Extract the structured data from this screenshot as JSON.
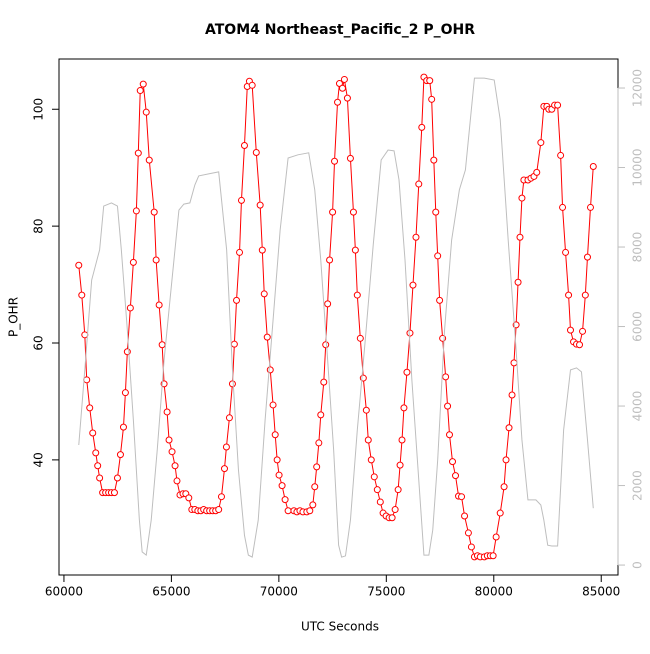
{
  "chart_data": {
    "type": "line",
    "title": "ATOM4 Northeast_Pacific_2 P_OHR",
    "xlabel": "UTC Seconds",
    "ylabel": "P_OHR",
    "xlim": [
      59770,
      85780
    ],
    "ylim": [
      20.3,
      108.6
    ],
    "y2lim": [
      -250,
      12730
    ],
    "xticks": [
      60000,
      65000,
      70000,
      75000,
      80000,
      85000
    ],
    "yticks": [
      40,
      60,
      80,
      100
    ],
    "y2ticks": [
      0,
      2000,
      4000,
      6000,
      8000,
      10000,
      12000
    ],
    "series": [
      {
        "color": "#ff0000",
        "marker": "circle",
        "x": [
          60690,
          60830,
          60970,
          61060,
          61200,
          61340,
          61480,
          61570,
          61660,
          61800,
          61940,
          62080,
          62210,
          62350,
          62490,
          62630,
          62770,
          62860,
          62950,
          63090,
          63230,
          63370,
          63460,
          63550,
          63690,
          63830,
          63970,
          64200,
          64290,
          64430,
          64570,
          64660,
          64800,
          64890,
          65030,
          65170,
          65260,
          65400,
          65540,
          65670,
          65810,
          65950,
          66090,
          66230,
          66370,
          66500,
          66640,
          66780,
          66920,
          67060,
          67200,
          67330,
          67470,
          67560,
          67700,
          67840,
          67930,
          68030,
          68170,
          68260,
          68400,
          68530,
          68630,
          68760,
          68950,
          69130,
          69230,
          69320,
          69460,
          69600,
          69730,
          69830,
          69920,
          70010,
          70150,
          70290,
          70430,
          70700,
          70840,
          70980,
          71120,
          71300,
          71440,
          71580,
          71670,
          71760,
          71860,
          71950,
          72090,
          72180,
          72270,
          72360,
          72500,
          72590,
          72730,
          72820,
          72960,
          73050,
          73190,
          73330,
          73470,
          73560,
          73650,
          73790,
          73930,
          74070,
          74160,
          74300,
          74440,
          74580,
          74720,
          74850,
          74990,
          75130,
          75270,
          75410,
          75550,
          75640,
          75730,
          75820,
          75960,
          76100,
          76240,
          76380,
          76510,
          76650,
          76750,
          76880,
          77020,
          77110,
          77210,
          77300,
          77390,
          77480,
          77620,
          77760,
          77850,
          77940,
          78080,
          78220,
          78360,
          78500,
          78640,
          78820,
          78960,
          79100,
          79240,
          79370,
          79560,
          79700,
          79840,
          79970,
          80110,
          80300,
          80480,
          80570,
          80710,
          80850,
          80940,
          81040,
          81130,
          81220,
          81310,
          81400,
          81590,
          81730,
          81870,
          82000,
          82190,
          82330,
          82470,
          82560,
          82700,
          82830,
          82970,
          83110,
          83200,
          83340,
          83480,
          83570,
          83710,
          83850,
          83990,
          84130,
          84260,
          84360,
          84500,
          84630
        ],
        "values": [
          73.3,
          68.2,
          61.4,
          53.7,
          48.9,
          44.6,
          41.2,
          39.0,
          36.9,
          34.4,
          34.4,
          34.4,
          34.4,
          34.4,
          36.9,
          40.9,
          45.6,
          51.5,
          58.5,
          66.0,
          73.8,
          82.6,
          92.5,
          103.2,
          104.3,
          99.5,
          91.3,
          82.4,
          74.2,
          66.5,
          59.7,
          53.0,
          48.2,
          43.4,
          41.4,
          39.0,
          36.4,
          34.0,
          34.2,
          34.2,
          33.5,
          31.5,
          31.5,
          31.3,
          31.3,
          31.5,
          31.3,
          31.3,
          31.3,
          31.3,
          31.5,
          33.7,
          38.5,
          42.2,
          47.2,
          53.0,
          59.8,
          67.3,
          75.5,
          84.4,
          93.8,
          103.9,
          104.8,
          104.1,
          92.6,
          83.6,
          75.9,
          68.4,
          61.0,
          55.4,
          49.4,
          44.3,
          40.0,
          37.4,
          35.6,
          33.2,
          31.3,
          31.3,
          31.1,
          31.3,
          31.1,
          31.1,
          31.3,
          32.3,
          35.4,
          38.8,
          42.9,
          47.7,
          53.3,
          59.7,
          66.7,
          74.2,
          82.4,
          91.1,
          101.2,
          104.4,
          103.6,
          105.1,
          101.9,
          91.6,
          82.4,
          75.9,
          68.2,
          60.8,
          54.0,
          48.5,
          43.4,
          40.0,
          37.1,
          34.9,
          32.8,
          30.9,
          30.4,
          30.1,
          30.1,
          31.5,
          34.9,
          39.1,
          43.4,
          48.9,
          55.0,
          61.7,
          69.9,
          78.1,
          87.2,
          96.9,
          105.5,
          104.9,
          104.9,
          101.7,
          91.3,
          82.4,
          74.9,
          67.3,
          60.8,
          54.2,
          49.2,
          44.3,
          39.7,
          37.3,
          33.8,
          33.7,
          30.4,
          27.5,
          25.1,
          23.4,
          23.6,
          23.4,
          23.4,
          23.6,
          23.6,
          23.6,
          26.8,
          30.9,
          35.4,
          40.0,
          45.5,
          51.1,
          56.6,
          63.1,
          70.4,
          78.1,
          84.8,
          87.9,
          87.9,
          88.2,
          88.5,
          89.2,
          94.3,
          100.5,
          100.5,
          100.0,
          100.0,
          100.7,
          100.7,
          92.1,
          83.2,
          75.5,
          68.2,
          62.2,
          60.2,
          59.8,
          59.7,
          62.0,
          68.2,
          74.7,
          83.2,
          90.2
        ]
      },
      {
        "color": "#bebebe",
        "axis": "y2",
        "x": [
          60690,
          60970,
          61290,
          61660,
          61850,
          62210,
          62490,
          62670,
          62950,
          63230,
          63510,
          63640,
          63830,
          64060,
          64340,
          64660,
          64980,
          65350,
          65580,
          65860,
          66090,
          66270,
          66730,
          67200,
          67570,
          67840,
          68120,
          68400,
          68580,
          68760,
          69040,
          69360,
          69730,
          70060,
          70430,
          70890,
          71390,
          71670,
          71950,
          72270,
          72550,
          72780,
          72920,
          73100,
          73330,
          73650,
          74020,
          74390,
          74760,
          75080,
          75360,
          75590,
          75870,
          76190,
          76510,
          76750,
          76980,
          77160,
          77390,
          77710,
          78040,
          78400,
          78680,
          79100,
          79560,
          80020,
          80300,
          80670,
          81040,
          81310,
          81590,
          81960,
          82190,
          82330,
          82510,
          82700,
          82970,
          83250,
          83570,
          83850,
          84080,
          84360,
          84630
        ],
        "values": [
          3020,
          4910,
          7170,
          7930,
          9030,
          9110,
          9030,
          7930,
          5910,
          3650,
          1130,
          330,
          250,
          1130,
          2890,
          5160,
          6920,
          8930,
          9080,
          9110,
          9560,
          9790,
          9840,
          9890,
          7930,
          4910,
          2390,
          750,
          250,
          200,
          1130,
          3650,
          6160,
          8430,
          10240,
          10320,
          10370,
          9440,
          7670,
          5160,
          2890,
          500,
          200,
          230,
          1130,
          3400,
          5660,
          8050,
          10190,
          10440,
          10420,
          9690,
          7670,
          4650,
          2140,
          250,
          250,
          880,
          2640,
          5910,
          8180,
          9440,
          9940,
          12250,
          12250,
          12200,
          11200,
          8180,
          5410,
          3150,
          1640,
          1640,
          1510,
          1130,
          500,
          480,
          480,
          3400,
          4910,
          4960,
          4860,
          3150,
          1430
        ]
      }
    ]
  }
}
